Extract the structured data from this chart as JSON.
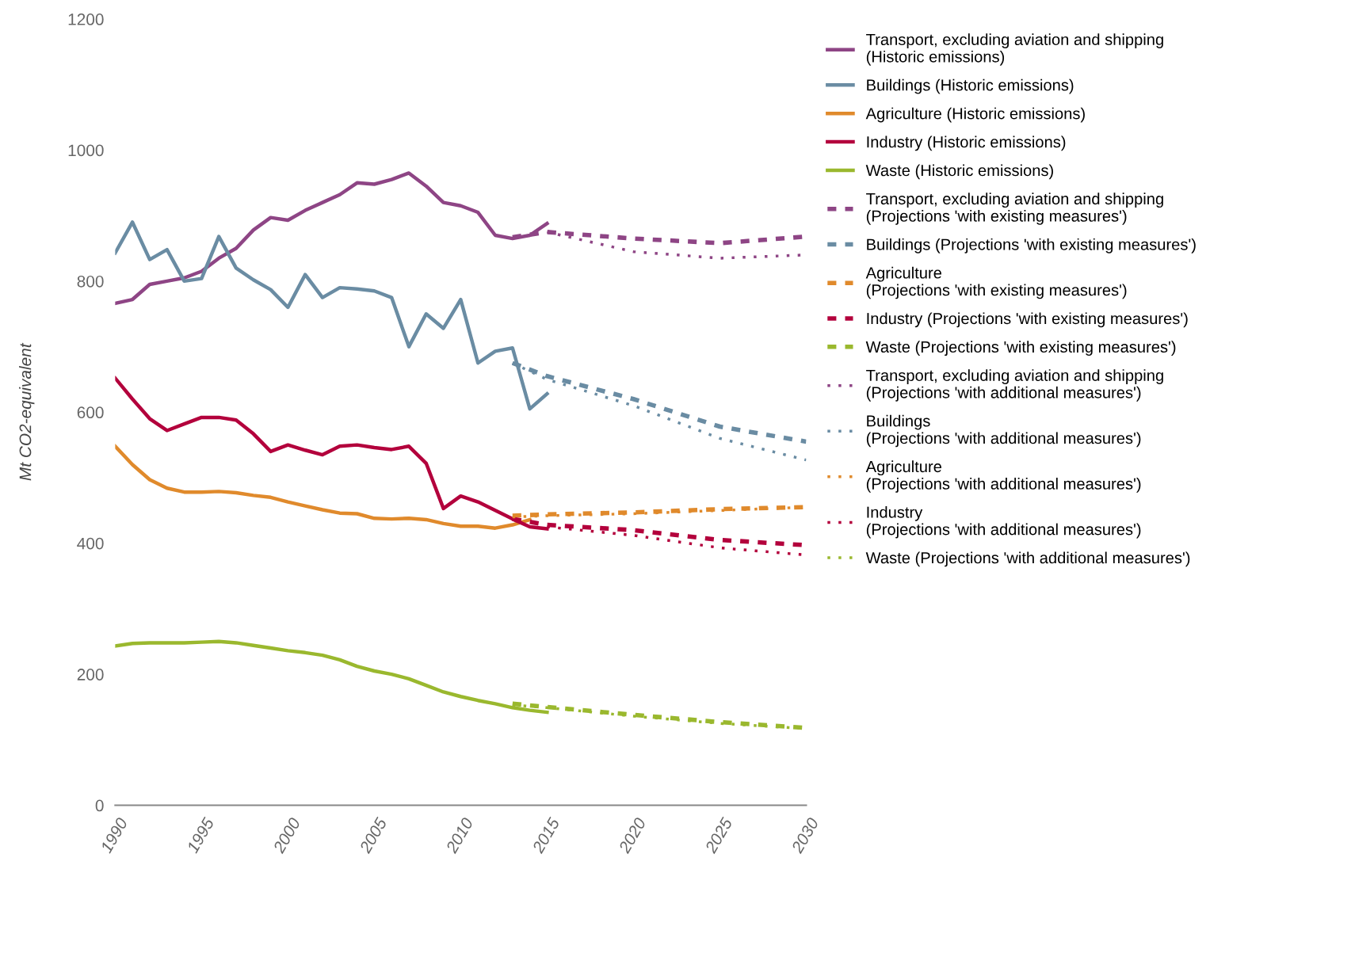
{
  "chart_data": {
    "type": "line",
    "ylabel": "Mt CO2-equivalent",
    "xlim": [
      1990,
      2030
    ],
    "ylim": [
      0,
      1200
    ],
    "xticks": [
      1990,
      1995,
      2000,
      2005,
      2010,
      2015,
      2020,
      2025,
      2030
    ],
    "yticks": [
      0,
      200,
      400,
      600,
      800,
      1000,
      1200
    ],
    "grid": false,
    "legend": "right",
    "marker": "none",
    "series": [
      {
        "name": "Transport, excluding aviation and shipping (Historic emissions)",
        "color": "#8e4585",
        "line_style": "solid",
        "x": [
          1990,
          1991,
          1992,
          1993,
          1994,
          1995,
          1996,
          1997,
          1998,
          1999,
          2000,
          2001,
          2002,
          2003,
          2004,
          2005,
          2006,
          2007,
          2008,
          2009,
          2010,
          2011,
          2012,
          2013,
          2014,
          2015
        ],
        "values": [
          766,
          772,
          795,
          800,
          805,
          815,
          835,
          850,
          878,
          897,
          893,
          908,
          920,
          932,
          950,
          948,
          955,
          965,
          945,
          920,
          915,
          905,
          870,
          865,
          870,
          888
        ]
      },
      {
        "name": "Buildings (Historic emissions)",
        "color": "#6a8ca3",
        "line_style": "solid",
        "x": [
          1990,
          1991,
          1992,
          1993,
          1994,
          1995,
          1996,
          1997,
          1998,
          1999,
          2000,
          2001,
          2002,
          2003,
          2004,
          2005,
          2006,
          2007,
          2008,
          2009,
          2010,
          2011,
          2012,
          2013,
          2014,
          2015
        ],
        "values": [
          843,
          890,
          833,
          848,
          800,
          804,
          868,
          820,
          802,
          787,
          760,
          810,
          775,
          790,
          788,
          785,
          775,
          700,
          750,
          728,
          772,
          675,
          693,
          698,
          605,
          628
        ]
      },
      {
        "name": "Agriculture (Historic emissions)",
        "color": "#e08a2c",
        "line_style": "solid",
        "x": [
          1990,
          1991,
          1992,
          1993,
          1994,
          1995,
          1996,
          1997,
          1998,
          1999,
          2000,
          2001,
          2002,
          2003,
          2004,
          2005,
          2006,
          2007,
          2008,
          2009,
          2010,
          2011,
          2012,
          2013,
          2014
        ],
        "values": [
          548,
          520,
          497,
          484,
          478,
          478,
          479,
          477,
          473,
          470,
          463,
          457,
          451,
          446,
          445,
          438,
          437,
          438,
          436,
          430,
          426,
          426,
          423,
          428,
          436
        ]
      },
      {
        "name": "Industry (Historic emissions)",
        "color": "#b3003c",
        "line_style": "solid",
        "x": [
          1990,
          1991,
          1992,
          1993,
          1994,
          1995,
          1996,
          1997,
          1998,
          1999,
          2000,
          2001,
          2002,
          2003,
          2004,
          2005,
          2006,
          2007,
          2008,
          2009,
          2010,
          2011,
          2012,
          2013,
          2014,
          2015
        ],
        "values": [
          652,
          620,
          590,
          572,
          582,
          592,
          592,
          588,
          567,
          540,
          550,
          542,
          535,
          548,
          550,
          546,
          543,
          548,
          522,
          453,
          472,
          463,
          450,
          437,
          425,
          422
        ]
      },
      {
        "name": "Waste (Historic emissions)",
        "color": "#9ab82e",
        "line_style": "solid",
        "x": [
          1990,
          1991,
          1992,
          1993,
          1994,
          1995,
          1996,
          1997,
          1998,
          1999,
          2000,
          2001,
          2002,
          2003,
          2004,
          2005,
          2006,
          2007,
          2008,
          2009,
          2010,
          2011,
          2012,
          2013,
          2014,
          2015
        ],
        "values": [
          243,
          247,
          248,
          248,
          248,
          249,
          250,
          248,
          244,
          240,
          236,
          233,
          229,
          222,
          212,
          205,
          200,
          193,
          183,
          173,
          166,
          160,
          155,
          149,
          145,
          142
        ]
      },
      {
        "name": "Transport, excluding aviation and shipping (Projections 'with existing measures')",
        "color": "#8e4585",
        "line_style": "dashed",
        "x": [
          2013,
          2015,
          2020,
          2025,
          2030
        ],
        "values": [
          867,
          875,
          865,
          858,
          868
        ]
      },
      {
        "name": "Buildings (Projections 'with existing measures')",
        "color": "#6a8ca3",
        "line_style": "dashed",
        "x": [
          2013,
          2015,
          2020,
          2025,
          2030
        ],
        "values": [
          675,
          655,
          620,
          578,
          555
        ]
      },
      {
        "name": "Agriculture (Projections 'with existing measures')",
        "color": "#e08a2c",
        "line_style": "dashed",
        "x": [
          2013,
          2015,
          2020,
          2025,
          2030
        ],
        "values": [
          442,
          444,
          447,
          452,
          455
        ]
      },
      {
        "name": "Industry (Projections 'with existing measures')",
        "color": "#b3003c",
        "line_style": "dashed",
        "x": [
          2013,
          2015,
          2020,
          2025,
          2030
        ],
        "values": [
          437,
          428,
          420,
          405,
          397
        ]
      },
      {
        "name": "Waste (Projections 'with existing measures')",
        "color": "#9ab82e",
        "line_style": "dashed",
        "x": [
          2013,
          2015,
          2020,
          2025,
          2030
        ],
        "values": [
          155,
          150,
          138,
          127,
          118
        ]
      },
      {
        "name": "Transport, excluding aviation and shipping (Projections 'with additional measures')",
        "color": "#8e4585",
        "line_style": "dotted",
        "x": [
          2015,
          2020,
          2025,
          2030
        ],
        "values": [
          875,
          845,
          835,
          840
        ]
      },
      {
        "name": "Buildings (Projections 'with additional measures')",
        "color": "#6a8ca3",
        "line_style": "dotted",
        "x": [
          2013,
          2015,
          2020,
          2025,
          2030
        ],
        "values": [
          675,
          650,
          610,
          560,
          527
        ]
      },
      {
        "name": "Agriculture (Projections 'with additional measures')",
        "color": "#e08a2c",
        "line_style": "dotted",
        "x": [
          2013,
          2015,
          2020,
          2025,
          2030
        ],
        "values": [
          440,
          442,
          445,
          450,
          455
        ]
      },
      {
        "name": "Industry (Projections 'with additional measures')",
        "color": "#b3003c",
        "line_style": "dotted",
        "x": [
          2015,
          2020,
          2025,
          2030
        ],
        "values": [
          425,
          412,
          393,
          382
        ]
      },
      {
        "name": "Waste (Projections 'with additional measures')",
        "color": "#9ab82e",
        "line_style": "dotted",
        "x": [
          2013,
          2015,
          2020,
          2025,
          2030
        ],
        "values": [
          153,
          149,
          136,
          125,
          117
        ]
      }
    ]
  }
}
